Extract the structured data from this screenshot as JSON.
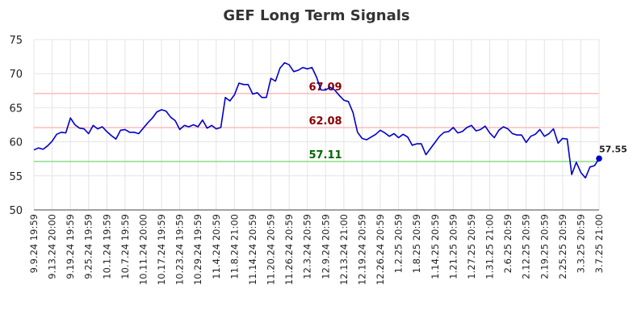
{
  "chart_data": {
    "type": "line",
    "title": "GEF Long Term Signals",
    "ylim": [
      50,
      75
    ],
    "yticks": [
      50,
      55,
      60,
      65,
      70,
      75
    ],
    "grid": true,
    "x_tick_labels": [
      "9.9.24 19:59",
      "9.13.24 20:00",
      "9.19.24 19:59",
      "9.25.24 19:59",
      "10.1.24 19:59",
      "10.7.24 19:59",
      "10.11.24 20:00",
      "10.17.24 19:59",
      "10.23.24 19:59",
      "10.29.24 19:59",
      "11.4.24 20:59",
      "11.8.24 21:00",
      "11.14.24 20:59",
      "11.20.24 20:59",
      "11.26.24 20:59",
      "12.3.24 20:59",
      "12.9.24 20:59",
      "12.13.24 21:00",
      "12.19.24 20:59",
      "12.26.24 20:59",
      "1.2.25 20:59",
      "1.8.25 20:59",
      "1.14.25 20:59",
      "1.21.25 20:59",
      "1.27.25 20:59",
      "1.31.25 21:00",
      "2.6.25 20:59",
      "2.12.25 20:59",
      "2.19.25 20:59",
      "2.25.25 20:59",
      "3.3.25 20:59",
      "3.7.25 21:00"
    ],
    "series": [
      {
        "color": "#0000cc",
        "values": [
          58.8,
          59.1,
          58.9,
          59.4,
          60.1,
          61.1,
          61.4,
          61.3,
          63.5,
          62.5,
          62.0,
          61.9,
          61.2,
          62.4,
          61.9,
          62.2,
          61.5,
          60.9,
          60.4,
          61.7,
          61.8,
          61.4,
          61.4,
          61.2,
          62.0,
          62.8,
          63.5,
          64.4,
          64.7,
          64.5,
          63.6,
          63.1,
          61.8,
          62.4,
          62.2,
          62.5,
          62.2,
          63.2,
          62.0,
          62.4,
          61.9,
          62.1,
          66.5,
          66.0,
          66.9,
          68.6,
          68.4,
          68.4,
          67.0,
          67.2,
          66.5,
          66.5,
          69.3,
          68.9,
          70.8,
          71.6,
          71.3,
          70.3,
          70.5,
          70.9,
          70.7,
          70.9,
          69.5,
          67.6,
          67.6,
          68.0,
          67.6,
          66.8,
          66.1,
          65.9,
          64.3,
          61.4,
          60.5,
          60.3,
          60.7,
          61.1,
          61.7,
          61.3,
          60.8,
          61.2,
          60.6,
          61.1,
          60.7,
          59.5,
          59.7,
          59.7,
          58.1,
          59.0,
          59.9,
          60.8,
          61.4,
          61.5,
          62.1,
          61.3,
          61.5,
          62.1,
          62.4,
          61.6,
          61.8,
          62.3,
          61.3,
          60.6,
          61.7,
          62.2,
          61.9,
          61.2,
          61.0,
          61.0,
          59.9,
          60.8,
          61.1,
          61.8,
          60.8,
          61.2,
          61.9,
          59.8,
          60.5,
          60.4,
          55.2,
          57.0,
          55.5,
          54.7,
          56.3,
          56.5,
          57.55
        ]
      }
    ],
    "levels": [
      {
        "value": 67.09,
        "label": "67.09",
        "line_color": "#ffbbbb",
        "text_color": "#880000"
      },
      {
        "value": 62.08,
        "label": "62.08",
        "line_color": "#ffbbbb",
        "text_color": "#880000"
      },
      {
        "value": 57.11,
        "label": "57.11",
        "line_color": "#88dd88",
        "text_color": "#006600"
      }
    ],
    "last_point": {
      "value": 57.55,
      "label": "57.55",
      "color": "#0000cc"
    }
  }
}
